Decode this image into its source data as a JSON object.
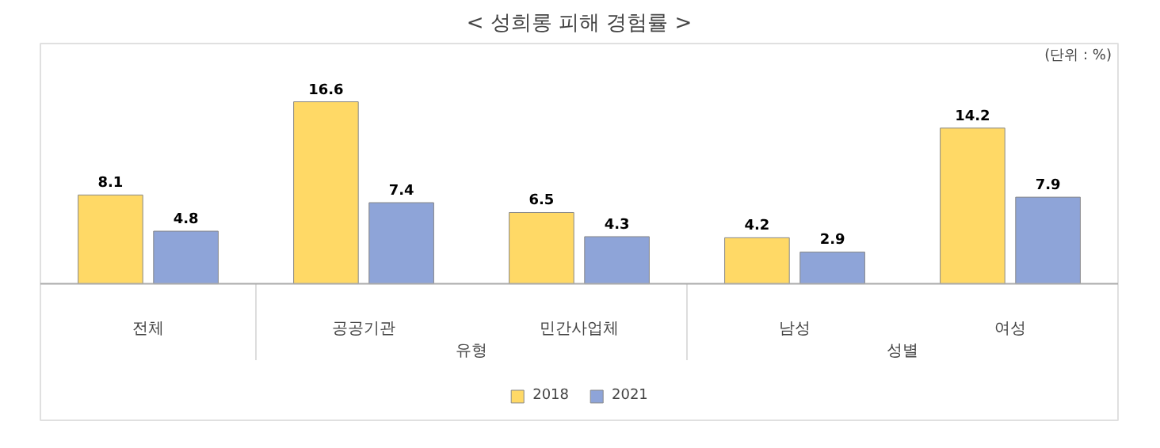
{
  "chart_data": {
    "type": "bar",
    "title": "< 성희롱 피해 경험률 >",
    "categories": [
      "전체",
      "공공기관",
      "민간사업체",
      "남성",
      "여성"
    ],
    "series": [
      {
        "name": "2018",
        "color": "#ffd966",
        "values": [
          8.1,
          16.6,
          6.5,
          4.2,
          14.2
        ]
      },
      {
        "name": "2021",
        "color": "#8ea4d8",
        "values": [
          4.8,
          7.4,
          4.3,
          2.9,
          7.9
        ]
      }
    ],
    "data_labels": true,
    "legend": "bottom",
    "annotations": [
      "(단위 : %)",
      "유형",
      "성별"
    ]
  }
}
